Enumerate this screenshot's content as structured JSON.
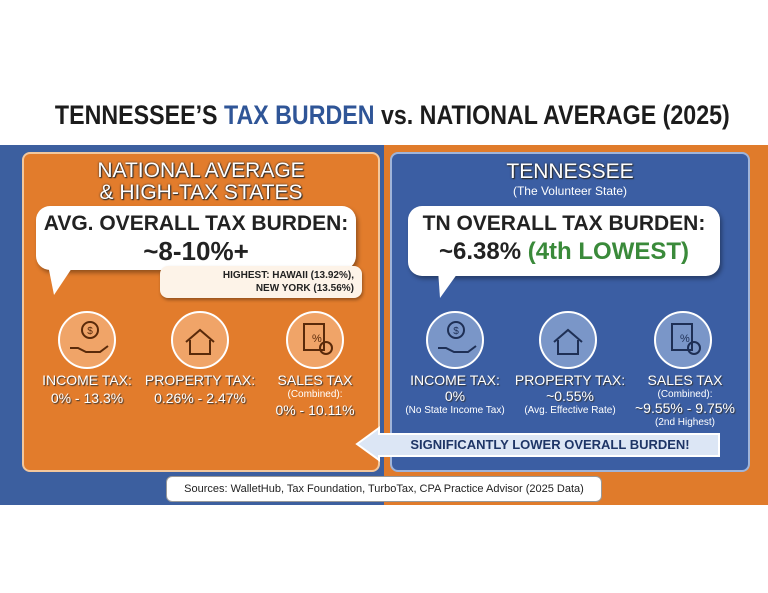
{
  "header": {
    "title_prefix": "TENNESSEE’S",
    "title_highlight": "TAX BURDEN",
    "title_suffix": "vs. NATIONAL AVERAGE (2025)"
  },
  "national": {
    "heading": [
      "NATIONAL AVERAGE",
      "& HIGH-TAX STATES"
    ],
    "burden_label": "AVG. OVERALL TAX BURDEN:",
    "burden_value": "~8-10%+",
    "note": [
      "HIGHEST: HAWAII (13.92%),",
      "NEW YORK (13.56%)"
    ],
    "items": [
      {
        "label": "INCOME TAX:",
        "value": "0% - 13.3%"
      },
      {
        "label": "PROPERTY TAX:",
        "value": "0.26% - 2.47%"
      },
      {
        "label": "SALES TAX",
        "sub": "(Combined):",
        "value": "0% - 10.11%"
      }
    ]
  },
  "tennessee": {
    "heading": "TENNESSEE",
    "subheading": "(The Volunteer State)",
    "burden_label": "TN OVERALL TAX BURDEN:",
    "burden_value": "~6.38%",
    "rank": "(4th LOWEST)",
    "items": [
      {
        "label": "INCOME TAX:",
        "value": "0%",
        "note": "(No State Income Tax)"
      },
      {
        "label": "PROPERTY TAX:",
        "value": "~0.55%",
        "note": "(Avg. Effective Rate)"
      },
      {
        "label": "SALES TAX",
        "sub": "(Combined):",
        "value": "~9.55% - 9.75%",
        "note": "(2nd Highest)"
      }
    ]
  },
  "callout": "SIGNIFICANTLY LOWER OVERALL BURDEN!",
  "sources": "Sources: WalletHub, Tax Foundation, TurboTax, CPA Practice Advisor (2025 Data)"
}
